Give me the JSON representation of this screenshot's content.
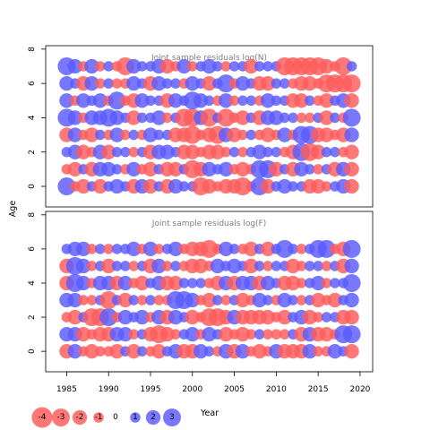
{
  "chart_data": {
    "type": "scatter",
    "subtype": "bubble-residuals",
    "ylabel": "Age",
    "xlabel": "Year",
    "x_ticks": [
      1985,
      1990,
      1995,
      2000,
      2005,
      2010,
      2015,
      2020
    ],
    "y_ticks": [
      0,
      2,
      4,
      6,
      8
    ],
    "xlim": [
      1982.5,
      2021.5
    ],
    "ylim": [
      -1.2,
      8.2
    ],
    "years": {
      "start": 1985,
      "end": 2019
    },
    "colors": {
      "negative": "#ff5a5a",
      "positive": "#5a5aff",
      "frame": "#000000",
      "title": "#7f7f7f"
    },
    "panels": [
      {
        "title": "Joint sample residuals log(N)",
        "ages": [
          0,
          1,
          2,
          3,
          4,
          5,
          6,
          7
        ],
        "residuals": {
          "7": [
            3,
            2,
            -1,
            2,
            -1,
            1,
            -1,
            -3,
            2,
            1,
            1,
            2,
            -2,
            -1,
            2,
            -1,
            1,
            2,
            1,
            -1,
            1,
            1,
            -2,
            1,
            1,
            1,
            -3,
            -3,
            -3,
            -3,
            -3,
            -2,
            -1,
            -3,
            1
          ],
          "6": [
            2,
            1,
            -2,
            2,
            -1,
            1,
            -1,
            -1,
            2,
            1,
            -2,
            2,
            1,
            1,
            -1,
            2,
            1,
            -2,
            1,
            3,
            -1,
            2,
            1,
            -2,
            -2,
            1,
            1,
            -1,
            -2,
            -2,
            -1,
            -3,
            -3,
            -3,
            -3
          ],
          "5": [
            2,
            -1,
            2,
            1,
            2,
            -1,
            3,
            -1,
            -2,
            2,
            1,
            1,
            -2,
            2,
            1,
            3,
            2,
            1,
            -1,
            2,
            -1,
            1,
            1,
            -1,
            2,
            1,
            1,
            -2,
            -2,
            1,
            -1,
            -2,
            1,
            2,
            -2
          ],
          "4": [
            3,
            2,
            -1,
            2,
            2,
            3,
            2,
            1,
            -2,
            1,
            1,
            2,
            -1,
            1,
            -3,
            -3,
            2,
            -3,
            1,
            -3,
            -1,
            -2,
            1,
            -2,
            2,
            2,
            1,
            1,
            -1,
            -1,
            1,
            -2,
            1,
            -1,
            3
          ],
          "3": [
            -2,
            2,
            -1,
            -2,
            1,
            -1,
            2,
            -1,
            1,
            -1,
            2,
            1,
            1,
            -2,
            -2,
            -3,
            -1,
            -2,
            -3,
            2,
            -2,
            -1,
            1,
            -1,
            -2,
            -1,
            2,
            -1,
            3,
            3,
            -2,
            -2,
            -1,
            -2,
            2
          ],
          "2": [
            1,
            2,
            -2,
            -1,
            2,
            -2,
            1,
            1,
            -1,
            1,
            -2,
            2,
            2,
            1,
            -2,
            -2,
            -1,
            -2,
            -2,
            -1,
            1,
            -1,
            1,
            2,
            1,
            1,
            -1,
            -2,
            3,
            -3,
            -2,
            1,
            1,
            -1,
            -2
          ],
          "1": [
            -1,
            -2,
            1,
            -2,
            2,
            2,
            1,
            -1,
            2,
            -1,
            -2,
            1,
            -2,
            -2,
            1,
            -3,
            -2,
            2,
            1,
            2,
            -1,
            -2,
            -1,
            3,
            3,
            -2,
            1,
            -2,
            2,
            1,
            -1,
            1,
            -2,
            2,
            -2
          ],
          "0": [
            3,
            -1,
            -2,
            1,
            -2,
            1,
            2,
            1,
            -2,
            2,
            -2,
            1,
            -2,
            2,
            1,
            1,
            -3,
            -2,
            -1,
            -2,
            -2,
            -3,
            -1,
            3,
            -2,
            1,
            2,
            1,
            1,
            -2,
            -2,
            -1,
            1,
            2,
            -2
          ]
        }
      },
      {
        "title": "Joint sample residuals log(F)",
        "ages": [
          0,
          1,
          2,
          3,
          4,
          5,
          6
        ],
        "residuals": {
          "6": [
            1,
            2,
            2,
            -1,
            1,
            -1,
            1,
            1,
            2,
            -1,
            2,
            -1,
            1,
            2,
            -1,
            -2,
            -2,
            -3,
            -1,
            2,
            1,
            -1,
            -2,
            1,
            -2,
            1,
            3,
            1,
            -1,
            1,
            3,
            3,
            -1,
            -2,
            3
          ],
          "5": [
            -2,
            3,
            2,
            -1,
            1,
            -2,
            1,
            1,
            -1,
            1,
            -2,
            2,
            -1,
            1,
            -1,
            -2,
            -2,
            -1,
            2,
            1,
            2,
            1,
            -2,
            1,
            -1,
            1,
            1,
            -2,
            -1,
            1,
            1,
            -1,
            1,
            -2,
            2
          ],
          "4": [
            -2,
            3,
            2,
            -1,
            2,
            2,
            -2,
            2,
            -1,
            -2,
            1,
            2,
            -2,
            -2,
            1,
            1,
            1,
            -1,
            -2,
            2,
            -2,
            2,
            2,
            -2,
            2,
            1,
            -2,
            -2,
            -1,
            1,
            2,
            -1,
            1,
            1,
            3
          ],
          "3": [
            2,
            2,
            -1,
            -1,
            1,
            -3,
            1,
            -2,
            1,
            -1,
            1,
            -1,
            -1,
            3,
            3,
            2,
            -1,
            -2,
            1,
            -1,
            1,
            -2,
            -1,
            2,
            1,
            -1,
            2,
            1,
            -1,
            1,
            -2,
            -1,
            -2,
            1,
            2
          ],
          "2": [
            -1,
            -2,
            1,
            -3,
            -3,
            3,
            -1,
            2,
            1,
            2,
            -1,
            2,
            -2,
            2,
            1,
            -2,
            -1,
            -3,
            -3,
            -2,
            2,
            -2,
            -2,
            -2,
            -2,
            -1,
            -2,
            1,
            2,
            -2,
            -1,
            1,
            1,
            -2,
            -2
          ],
          "1": [
            2,
            2,
            -2,
            -1,
            -2,
            -2,
            2,
            2,
            -1,
            1,
            -2,
            -3,
            -2,
            -1,
            1,
            2,
            -1,
            2,
            1,
            -2,
            -1,
            -2,
            -1,
            1,
            -1,
            -1,
            -1,
            1,
            -2,
            2,
            -2,
            -2,
            -1,
            3,
            3
          ],
          "0": [
            -2,
            2,
            -1,
            -2,
            -1,
            -1,
            -2,
            1,
            -2,
            1,
            -1,
            -2,
            1,
            2,
            -2,
            -2,
            2,
            1,
            -1,
            2,
            -2,
            2,
            -1,
            -2,
            -1,
            2,
            -2,
            -2,
            -2,
            2,
            -1,
            -1,
            2,
            1,
            -2
          ]
        }
      }
    ],
    "legend": {
      "placement": "bottom-left",
      "values": [
        "-4",
        "-3",
        "-2",
        "-1",
        "0",
        "1",
        "2",
        "3"
      ]
    }
  }
}
